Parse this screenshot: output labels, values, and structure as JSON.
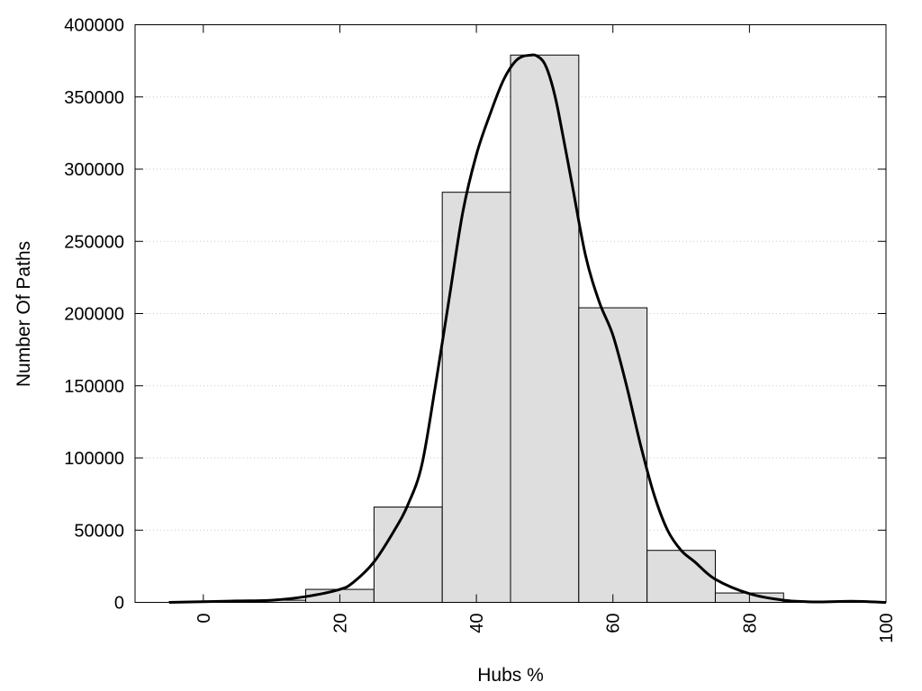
{
  "chart_data": {
    "type": "bar",
    "xlabel": "Hubs %",
    "ylabel": "Number Of Paths",
    "xlim": [
      -10,
      100
    ],
    "ylim": [
      0,
      400000
    ],
    "x_ticks": [
      0,
      20,
      40,
      60,
      80,
      100
    ],
    "y_ticks": [
      0,
      50000,
      100000,
      150000,
      200000,
      250000,
      300000,
      350000,
      400000
    ],
    "grid": "horizontal-dotted",
    "legend": "none",
    "colors": {
      "bar_fill": "#dedede",
      "bar_stroke": "#000000",
      "curve": "#000000"
    },
    "bins": [
      {
        "from": -5,
        "to": 5,
        "value": 500
      },
      {
        "from": 5,
        "to": 15,
        "value": 1500
      },
      {
        "from": 15,
        "to": 25,
        "value": 9000
      },
      {
        "from": 25,
        "to": 35,
        "value": 66000
      },
      {
        "from": 35,
        "to": 45,
        "value": 284000
      },
      {
        "from": 45,
        "to": 55,
        "value": 379000
      },
      {
        "from": 55,
        "to": 65,
        "value": 204000
      },
      {
        "from": 65,
        "to": 75,
        "value": 36000
      },
      {
        "from": 75,
        "to": 85,
        "value": 6500
      },
      {
        "from": 85,
        "to": 95,
        "value": 800
      },
      {
        "from": 95,
        "to": 100,
        "value": 300
      }
    ],
    "curve": {
      "x": [
        -5,
        0,
        5,
        10,
        15,
        20,
        22,
        25,
        28,
        30,
        32,
        34,
        36,
        38,
        40,
        42,
        44,
        46,
        48,
        49,
        50,
        51,
        52,
        54,
        56,
        58,
        60,
        62,
        64,
        66,
        68,
        70,
        72,
        75,
        80,
        85,
        90,
        95,
        100
      ],
      "y": [
        0,
        500,
        1000,
        1500,
        4000,
        9000,
        14000,
        28000,
        50000,
        68000,
        95000,
        150000,
        210000,
        270000,
        310000,
        338000,
        362000,
        376000,
        379000,
        378000,
        373000,
        360000,
        340000,
        290000,
        240000,
        208000,
        185000,
        150000,
        110000,
        75000,
        50000,
        36000,
        28000,
        16000,
        6000,
        1500,
        300,
        800,
        0
      ]
    }
  }
}
